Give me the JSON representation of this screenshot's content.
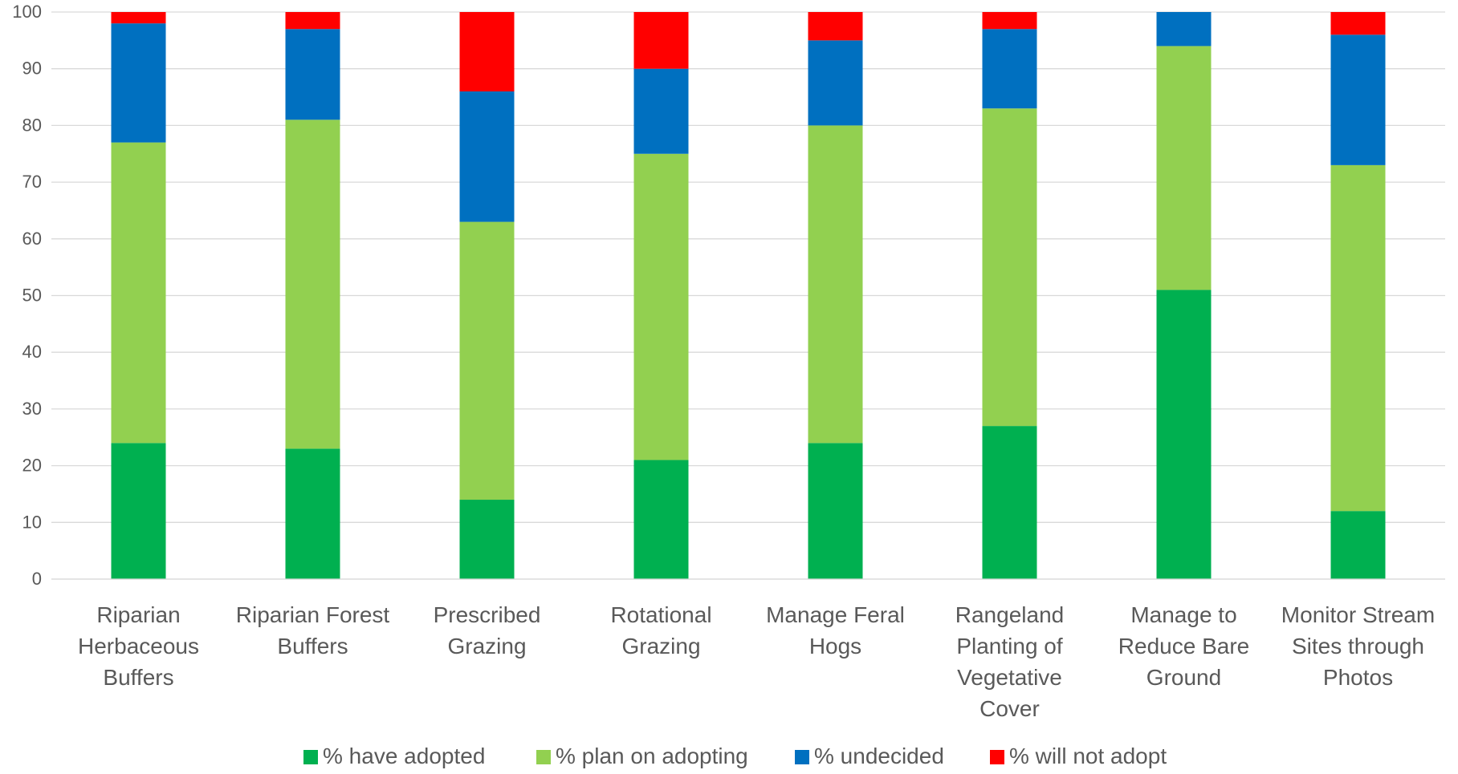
{
  "chart_data": {
    "type": "bar",
    "stacked": true,
    "title": "",
    "xlabel": "",
    "ylabel": "",
    "ylim": [
      0,
      100
    ],
    "yticks": [
      0,
      10,
      20,
      30,
      40,
      50,
      60,
      70,
      80,
      90,
      100
    ],
    "grid": true,
    "legend_position": "bottom",
    "categories": [
      [
        "Riparian",
        "Herbaceous",
        "Buffers"
      ],
      [
        "Riparian Forest",
        "Buffers"
      ],
      [
        "Prescribed",
        "Grazing"
      ],
      [
        "Rotational",
        "Grazing"
      ],
      [
        "Manage Feral",
        "Hogs"
      ],
      [
        "Rangeland",
        "Planting of",
        "Vegetative",
        "Cover"
      ],
      [
        "Manage to",
        "Reduce Bare",
        "Ground"
      ],
      [
        "Monitor Stream",
        "Sites through",
        "Photos"
      ]
    ],
    "series": [
      {
        "name": "% have adopted",
        "color": "#00b050",
        "values": [
          24,
          23,
          14,
          21,
          24,
          27,
          51,
          12
        ]
      },
      {
        "name": "% plan on adopting",
        "color": "#92d050",
        "values": [
          53,
          58,
          49,
          54,
          56,
          56,
          43,
          61
        ]
      },
      {
        "name": "% undecided",
        "color": "#0070c0",
        "values": [
          21,
          16,
          23,
          15,
          15,
          14,
          6,
          23
        ]
      },
      {
        "name": "% will not adopt",
        "color": "#ff0000",
        "values": [
          2,
          3,
          14,
          10,
          5,
          3,
          0,
          4
        ]
      }
    ]
  }
}
